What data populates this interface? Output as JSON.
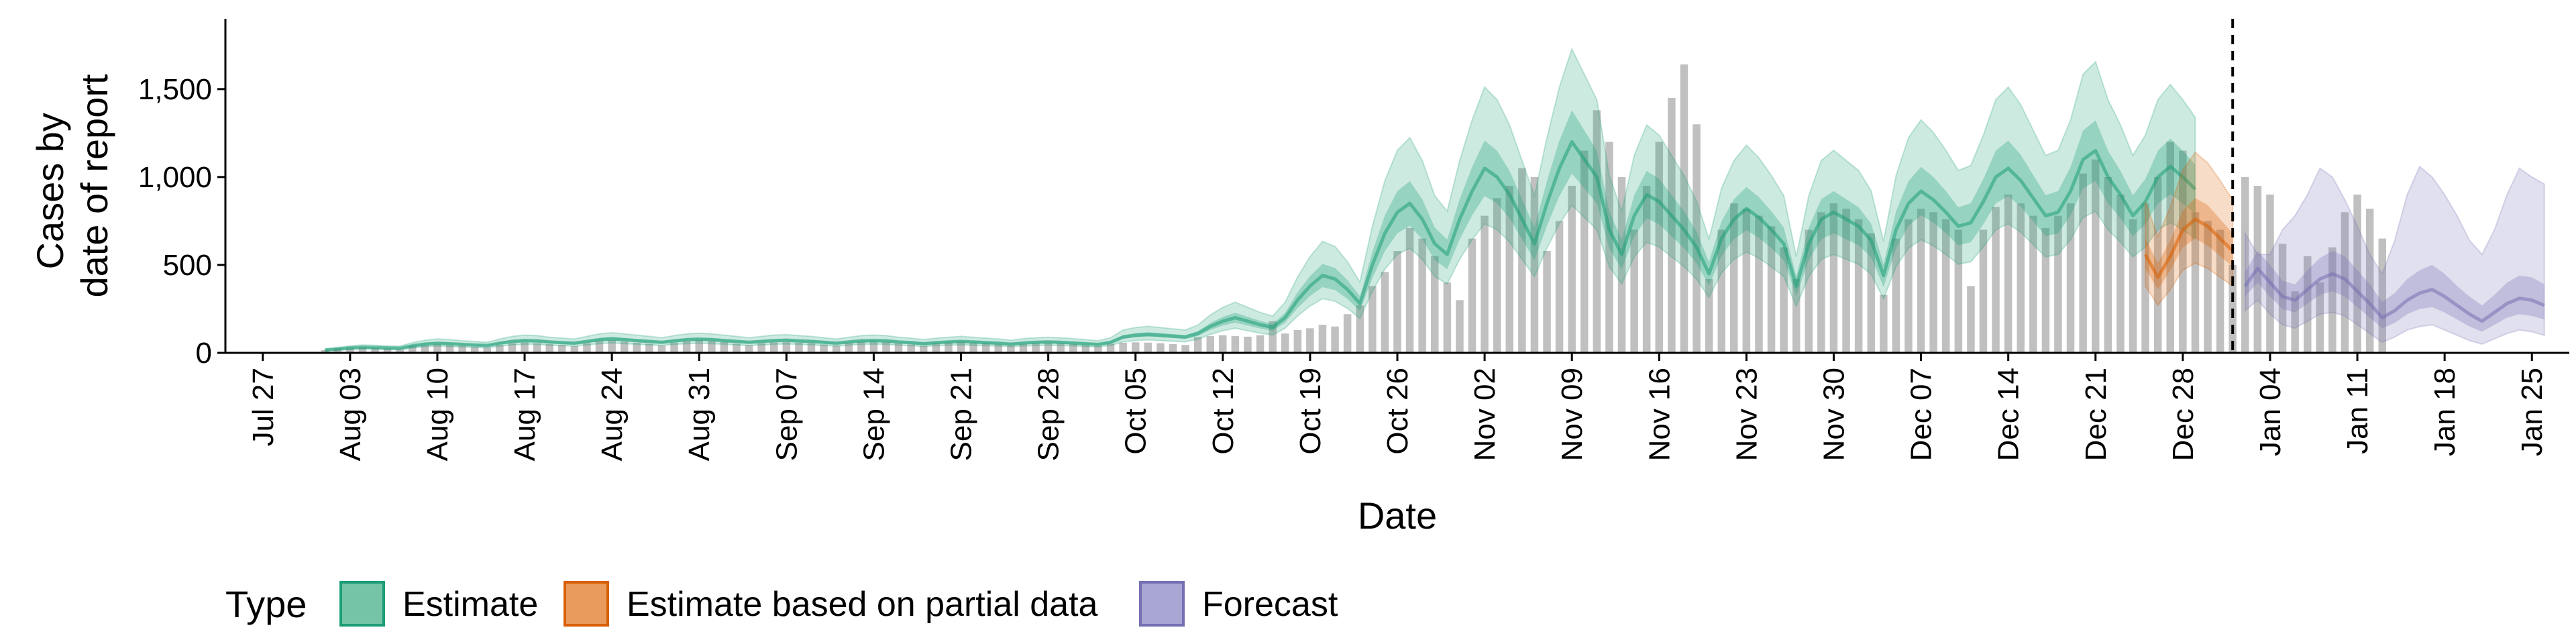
{
  "chart_data": {
    "type": "bar",
    "xlabel": "Date",
    "ylabel_lines": [
      "Cases by",
      "date of report"
    ],
    "ylim": [
      0,
      1900
    ],
    "yticks": [
      0,
      500,
      1000,
      1500
    ],
    "ytick_labels": [
      "0",
      "500",
      "1,000",
      "1,500"
    ],
    "x_start_date": "2020-07-24",
    "x_end_date": "2021-01-28",
    "xticks": [
      "2020-07-27",
      "2020-08-03",
      "2020-08-10",
      "2020-08-17",
      "2020-08-24",
      "2020-08-31",
      "2020-09-07",
      "2020-09-14",
      "2020-09-21",
      "2020-09-28",
      "2020-10-05",
      "2020-10-12",
      "2020-10-19",
      "2020-10-26",
      "2020-11-02",
      "2020-11-09",
      "2020-11-16",
      "2020-11-23",
      "2020-11-30",
      "2020-12-07",
      "2020-12-14",
      "2020-12-21",
      "2020-12-28",
      "2021-01-04",
      "2021-01-11",
      "2021-01-18",
      "2021-01-25"
    ],
    "xtick_labels": [
      "Jul 27",
      "Aug 03",
      "Aug 10",
      "Aug 17",
      "Aug 24",
      "Aug 31",
      "Sep 07",
      "Sep 14",
      "Sep 21",
      "Sep 28",
      "Oct 05",
      "Oct 12",
      "Oct 19",
      "Oct 26",
      "Nov 02",
      "Nov 09",
      "Nov 16",
      "Nov 23",
      "Nov 30",
      "Dec 07",
      "Dec 14",
      "Dec 21",
      "Dec 28",
      "Jan 04",
      "Jan 11",
      "Jan 18",
      "Jan 25"
    ],
    "forecast_cutoff_date": "2021-01-01",
    "bars": {
      "start_date": "2020-08-01",
      "values": [
        16,
        25,
        30,
        32,
        28,
        25,
        18,
        40,
        45,
        48,
        44,
        40,
        35,
        30,
        45,
        55,
        60,
        55,
        50,
        45,
        38,
        55,
        70,
        72,
        65,
        58,
        52,
        42,
        58,
        68,
        72,
        68,
        62,
        52,
        44,
        55,
        60,
        62,
        58,
        55,
        48,
        42,
        58,
        62,
        65,
        60,
        55,
        48,
        40,
        55,
        60,
        62,
        58,
        55,
        48,
        42,
        50,
        55,
        58,
        55,
        50,
        45,
        40,
        52,
        58,
        60,
        58,
        55,
        50,
        45,
        90,
        95,
        100,
        95,
        92,
        100,
        180,
        110,
        130,
        140,
        160,
        150,
        220,
        270,
        380,
        460,
        580,
        710,
        650,
        550,
        400,
        300,
        650,
        780,
        880,
        950,
        1050,
        1000,
        580,
        750,
        950,
        1150,
        1380,
        1200,
        1000,
        700,
        950,
        1200,
        1450,
        1640,
        1300,
        420,
        700,
        850,
        820,
        780,
        720,
        600,
        420,
        700,
        800,
        850,
        820,
        760,
        680,
        330,
        650,
        760,
        820,
        800,
        760,
        700,
        380,
        700,
        830,
        900,
        850,
        780,
        710,
        780,
        850,
        1020,
        1100,
        1000,
        900,
        760,
        850,
        1000,
        1200,
        1150,
        800,
        750,
        700,
        500,
        1000,
        950,
        900,
        620,
        350,
        550,
        400,
        600,
        800,
        900,
        820,
        650
      ]
    },
    "series": [
      {
        "name": "Estimate",
        "color": "#1b9e77",
        "start_date": "2020-08-01",
        "median": [
          16,
          22,
          28,
          32,
          30,
          28,
          26,
          40,
          50,
          55,
          52,
          48,
          45,
          42,
          55,
          65,
          70,
          68,
          62,
          58,
          55,
          65,
          75,
          80,
          75,
          70,
          65,
          60,
          68,
          75,
          78,
          75,
          70,
          65,
          60,
          65,
          70,
          72,
          68,
          65,
          60,
          55,
          62,
          68,
          70,
          68,
          62,
          58,
          52,
          58,
          62,
          65,
          62,
          58,
          55,
          50,
          56,
          60,
          62,
          60,
          56,
          52,
          48,
          60,
          90,
          100,
          105,
          100,
          95,
          90,
          110,
          150,
          180,
          200,
          180,
          160,
          145,
          200,
          300,
          380,
          440,
          420,
          360,
          280,
          500,
          680,
          800,
          850,
          760,
          620,
          560,
          760,
          920,
          1050,
          1000,
          900,
          760,
          620,
          850,
          1050,
          1200,
          1100,
          1000,
          700,
          560,
          780,
          900,
          860,
          780,
          700,
          600,
          450,
          650,
          760,
          820,
          770,
          700,
          620,
          380,
          620,
          760,
          800,
          760,
          720,
          640,
          440,
          700,
          850,
          920,
          870,
          800,
          720,
          740,
          860,
          1000,
          1050,
          980,
          880,
          780,
          800,
          920,
          1100,
          1150,
          1000,
          900,
          780,
          860,
          1000,
          1060,
          1000,
          930
        ],
        "lower50": [
          14,
          19,
          24,
          28,
          26,
          24,
          22,
          34,
          43,
          48,
          45,
          42,
          39,
          36,
          48,
          57,
          61,
          59,
          54,
          50,
          48,
          57,
          66,
          70,
          66,
          61,
          57,
          52,
          59,
          66,
          69,
          66,
          61,
          57,
          52,
          57,
          61,
          63,
          59,
          57,
          52,
          48,
          54,
          59,
          61,
          59,
          54,
          50,
          45,
          50,
          54,
          57,
          54,
          50,
          48,
          43,
          49,
          52,
          54,
          52,
          49,
          45,
          42,
          52,
          79,
          88,
          92,
          88,
          84,
          79,
          96,
          130,
          155,
          172,
          155,
          138,
          125,
          172,
          255,
          323,
          374,
          357,
          306,
          238,
          425,
          578,
          680,
          722,
          646,
          527,
          476,
          646,
          782,
          892,
          850,
          765,
          646,
          527,
          722,
          892,
          1020,
          935,
          850,
          595,
          476,
          663,
          765,
          731,
          663,
          595,
          510,
          382,
          552,
          646,
          697,
          654,
          595,
          527,
          323,
          527,
          646,
          680,
          646,
          612,
          544,
          374,
          595,
          722,
          782,
          740,
          680,
          612,
          629,
          731,
          850,
          892,
          833,
          748,
          663,
          680,
          782,
          935,
          977,
          850,
          765,
          663,
          731,
          850,
          901,
          850,
          790
        ],
        "upper50": [
          18,
          25,
          32,
          36,
          34,
          32,
          30,
          46,
          57,
          62,
          59,
          54,
          51,
          48,
          62,
          73,
          79,
          77,
          70,
          66,
          62,
          73,
          84,
          90,
          84,
          79,
          73,
          68,
          77,
          84,
          87,
          84,
          79,
          73,
          68,
          73,
          79,
          81,
          77,
          73,
          68,
          62,
          70,
          77,
          79,
          77,
          70,
          66,
          59,
          66,
          70,
          73,
          70,
          66,
          62,
          57,
          63,
          68,
          70,
          68,
          63,
          59,
          54,
          68,
          101,
          112,
          118,
          112,
          107,
          101,
          124,
          170,
          205,
          228,
          205,
          182,
          165,
          228,
          345,
          437,
          506,
          483,
          414,
          322,
          575,
          782,
          920,
          977,
          874,
          713,
          644,
          874,
          1058,
          1208,
          1150,
          1035,
          874,
          713,
          978,
          1208,
          1380,
          1265,
          1150,
          805,
          644,
          897,
          1035,
          989,
          897,
          805,
          690,
          518,
          748,
          874,
          943,
          886,
          805,
          713,
          437,
          713,
          874,
          920,
          874,
          828,
          736,
          506,
          805,
          977,
          1058,
          1000,
          920,
          828,
          851,
          989,
          1150,
          1208,
          1127,
          1012,
          897,
          920,
          1058,
          1265,
          1322,
          1150,
          1035,
          897,
          989,
          1150,
          1219,
          1150,
          1070
        ],
        "lower90": [
          11,
          15,
          19,
          22,
          21,
          19,
          18,
          28,
          35,
          38,
          36,
          34,
          31,
          29,
          38,
          45,
          49,
          48,
          43,
          41,
          38,
          45,
          52,
          56,
          52,
          49,
          45,
          42,
          48,
          52,
          55,
          52,
          49,
          45,
          42,
          45,
          49,
          50,
          48,
          45,
          42,
          38,
          43,
          48,
          49,
          48,
          43,
          41,
          36,
          41,
          43,
          45,
          43,
          41,
          38,
          35,
          39,
          42,
          43,
          42,
          39,
          36,
          34,
          42,
          63,
          70,
          74,
          70,
          66,
          63,
          77,
          105,
          126,
          140,
          126,
          112,
          101,
          140,
          210,
          266,
          308,
          294,
          252,
          196,
          350,
          476,
          560,
          595,
          532,
          434,
          392,
          532,
          644,
          735,
          700,
          630,
          532,
          434,
          595,
          735,
          840,
          770,
          700,
          490,
          392,
          546,
          630,
          602,
          546,
          490,
          420,
          315,
          455,
          532,
          574,
          539,
          490,
          434,
          266,
          434,
          532,
          560,
          532,
          504,
          448,
          308,
          490,
          595,
          644,
          609,
          560,
          504,
          518,
          602,
          700,
          735,
          686,
          616,
          546,
          560,
          644,
          770,
          805,
          700,
          630,
          546,
          602,
          700,
          742,
          700,
          651
        ],
        "upper90": [
          22,
          31,
          40,
          45,
          43,
          40,
          38,
          58,
          72,
          79,
          75,
          69,
          65,
          60,
          79,
          94,
          101,
          98,
          89,
          84,
          79,
          94,
          108,
          115,
          108,
          101,
          94,
          86,
          98,
          108,
          112,
          108,
          101,
          94,
          86,
          94,
          101,
          104,
          98,
          94,
          86,
          79,
          89,
          98,
          101,
          98,
          89,
          84,
          75,
          84,
          89,
          94,
          89,
          84,
          79,
          72,
          81,
          86,
          89,
          86,
          81,
          75,
          69,
          86,
          130,
          144,
          151,
          144,
          137,
          130,
          158,
          216,
          259,
          288,
          259,
          230,
          209,
          288,
          432,
          547,
          634,
          605,
          518,
          403,
          720,
          979,
          1152,
          1224,
          1094,
          893,
          806,
          1094,
          1325,
          1512,
          1440,
          1296,
          1094,
          893,
          1224,
          1512,
          1728,
          1584,
          1440,
          1008,
          806,
          1123,
          1296,
          1238,
          1123,
          1008,
          864,
          648,
          936,
          1094,
          1181,
          1109,
          1008,
          893,
          547,
          893,
          1094,
          1152,
          1094,
          1037,
          922,
          634,
          1008,
          1224,
          1325,
          1253,
          1152,
          1037,
          1066,
          1238,
          1440,
          1512,
          1411,
          1267,
          1123,
          1152,
          1325,
          1584,
          1656,
          1440,
          1296,
          1123,
          1238,
          1440,
          1526,
          1440,
          1339
        ]
      },
      {
        "name": "Estimate based on partial data",
        "color": "#d95f02",
        "start_date": "2020-12-25",
        "median": [
          560,
          430,
          550,
          700,
          760,
          720,
          650,
          580
        ],
        "lower50": [
          480,
          360,
          470,
          600,
          650,
          610,
          550,
          490
        ],
        "upper50": [
          650,
          510,
          640,
          810,
          880,
          840,
          760,
          680
        ],
        "lower90": [
          380,
          270,
          360,
          470,
          510,
          480,
          430,
          380
        ],
        "upper90": [
          860,
          660,
          830,
          1040,
          1140,
          1080,
          980,
          870
        ]
      },
      {
        "name": "Forecast",
        "color": "#7570b3",
        "start_date": "2021-01-02",
        "median": [
          380,
          480,
          400,
          320,
          300,
          360,
          420,
          450,
          420,
          350,
          280,
          200,
          240,
          300,
          340,
          360,
          320,
          270,
          220,
          180,
          230,
          280,
          310,
          300,
          270
        ],
        "lower50": [
          320,
          400,
          320,
          250,
          230,
          280,
          330,
          350,
          320,
          260,
          200,
          140,
          170,
          220,
          250,
          260,
          230,
          190,
          150,
          120,
          160,
          200,
          220,
          210,
          190
        ],
        "upper50": [
          460,
          580,
          500,
          410,
          390,
          470,
          540,
          580,
          550,
          470,
          390,
          290,
          340,
          420,
          470,
          500,
          450,
          380,
          320,
          270,
          330,
          400,
          440,
          430,
          390
        ],
        "lower90": [
          240,
          300,
          220,
          160,
          140,
          180,
          220,
          230,
          210,
          160,
          110,
          60,
          90,
          130,
          150,
          160,
          130,
          100,
          70,
          50,
          80,
          110,
          130,
          120,
          100
        ],
        "upper90": [
          680,
          560,
          560,
          700,
          780,
          900,
          1050,
          1000,
          870,
          720,
          560,
          450,
          640,
          900,
          1060,
          1000,
          900,
          780,
          640,
          560,
          700,
          900,
          1050,
          1000,
          960
        ]
      }
    ],
    "legend": {
      "title": "Type",
      "items": [
        "Estimate",
        "Estimate based on partial data",
        "Forecast"
      ],
      "placement": "bottom"
    },
    "bar_color": "#bdbdbd"
  }
}
